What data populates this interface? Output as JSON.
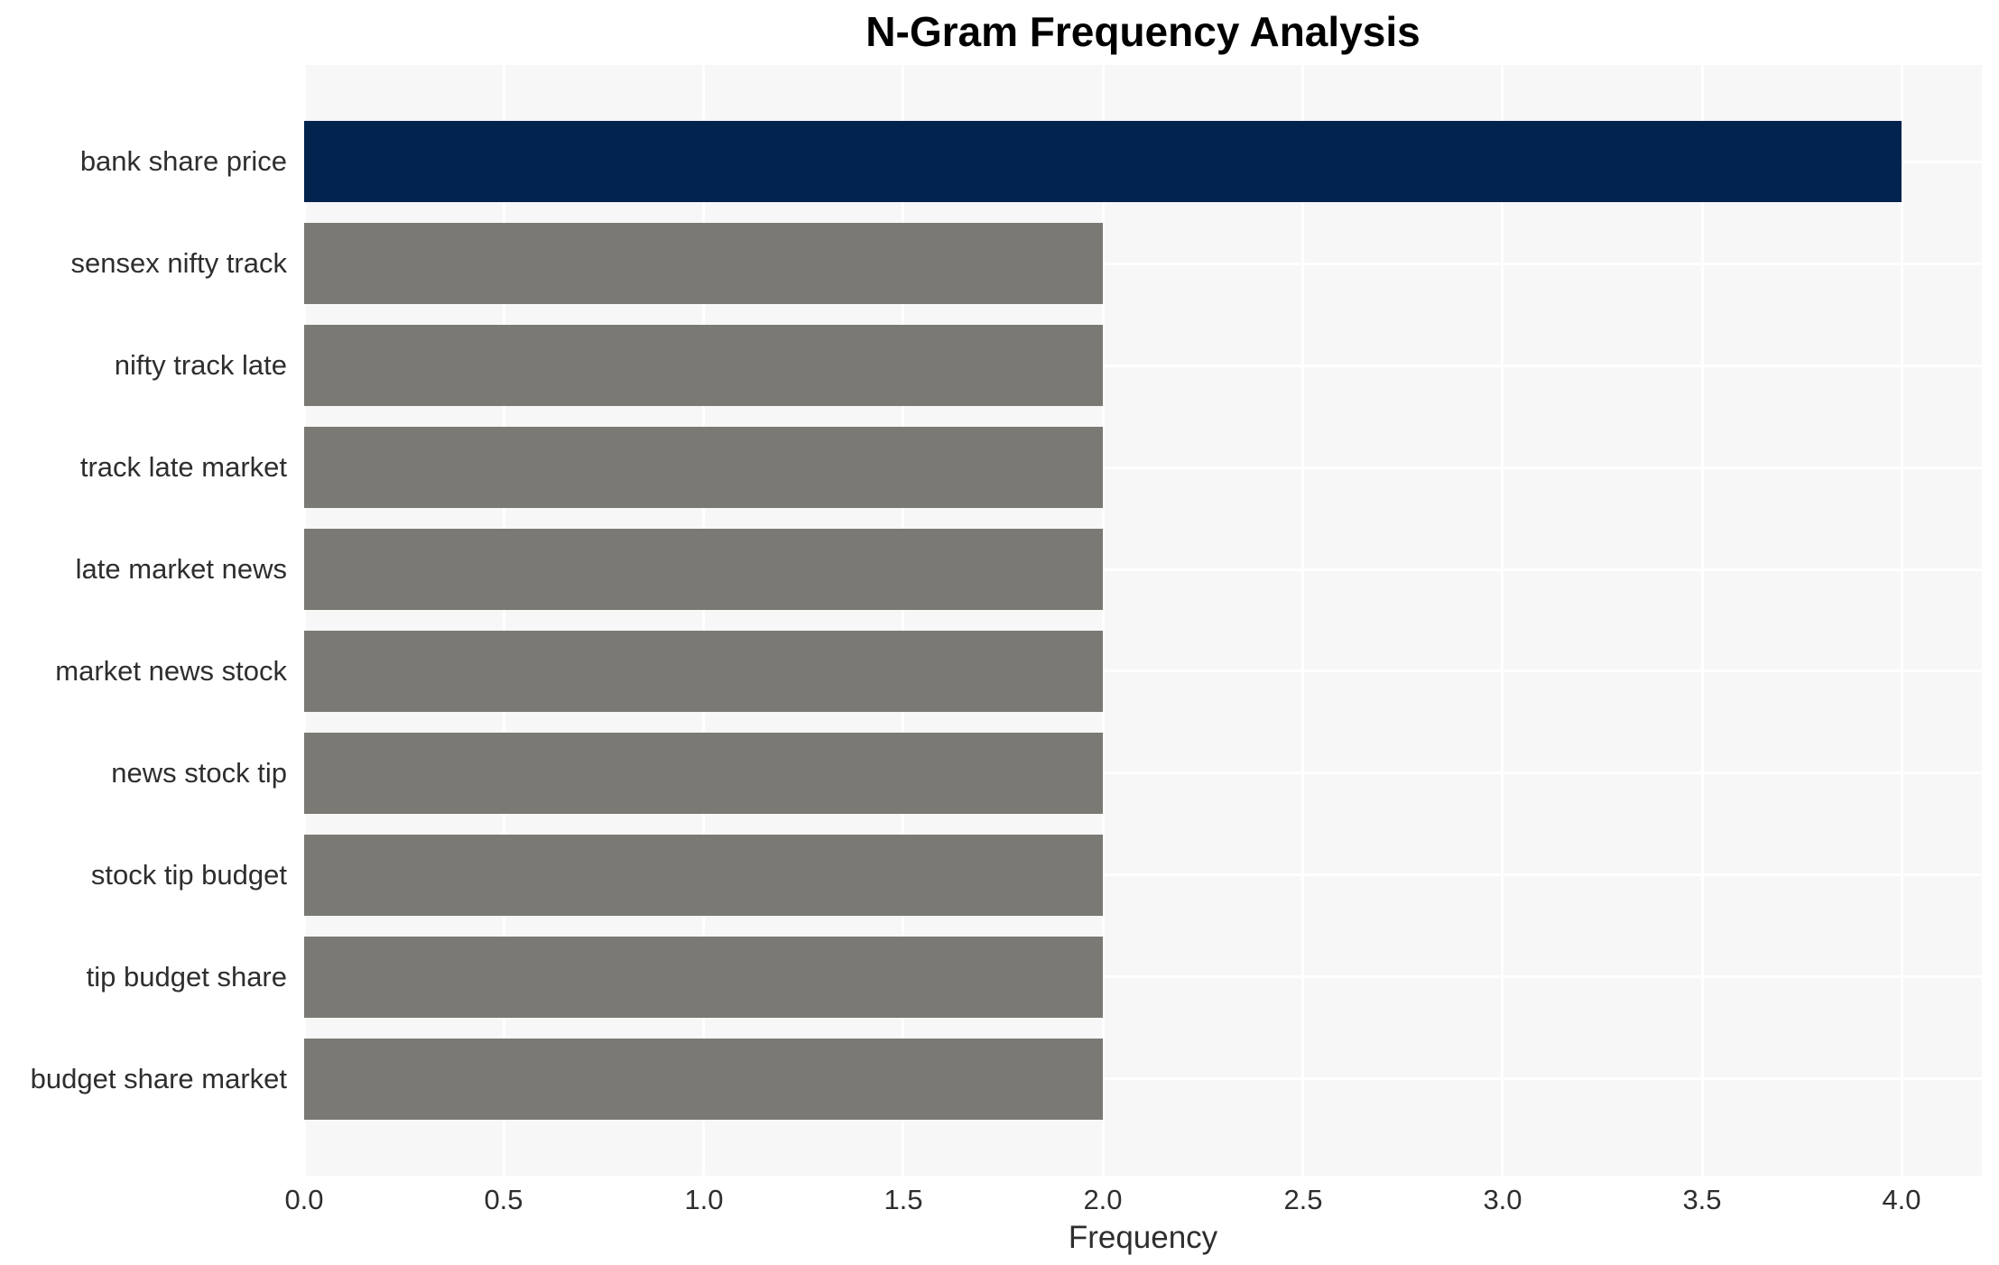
{
  "chart_data": {
    "type": "bar",
    "orientation": "horizontal",
    "title": "N-Gram Frequency Analysis",
    "xlabel": "Frequency",
    "ylabel": "",
    "categories": [
      "bank share price",
      "sensex nifty track",
      "nifty track late",
      "track late market",
      "late market news",
      "market news stock",
      "news stock tip",
      "stock tip budget",
      "tip budget share",
      "budget share market"
    ],
    "values": [
      4,
      2,
      2,
      2,
      2,
      2,
      2,
      2,
      2,
      2
    ],
    "bar_colors": [
      "#02234d",
      "#7a7974",
      "#7a7974",
      "#7a7974",
      "#7a7974",
      "#7a7974",
      "#7a7974",
      "#7a7974",
      "#7a7974",
      "#7a7974"
    ],
    "xlim": [
      0,
      4.2
    ],
    "xticks": [
      0.0,
      0.5,
      1.0,
      1.5,
      2.0,
      2.5,
      3.0,
      3.5,
      4.0
    ],
    "xtick_labels": [
      "0.0",
      "0.5",
      "1.0",
      "1.5",
      "2.0",
      "2.5",
      "3.0",
      "3.5",
      "4.0"
    ],
    "grid": true,
    "legend": false,
    "plot_background": "#f7f7f7",
    "gridline_color": "#ffffff",
    "bar_height_fraction": 0.8
  }
}
